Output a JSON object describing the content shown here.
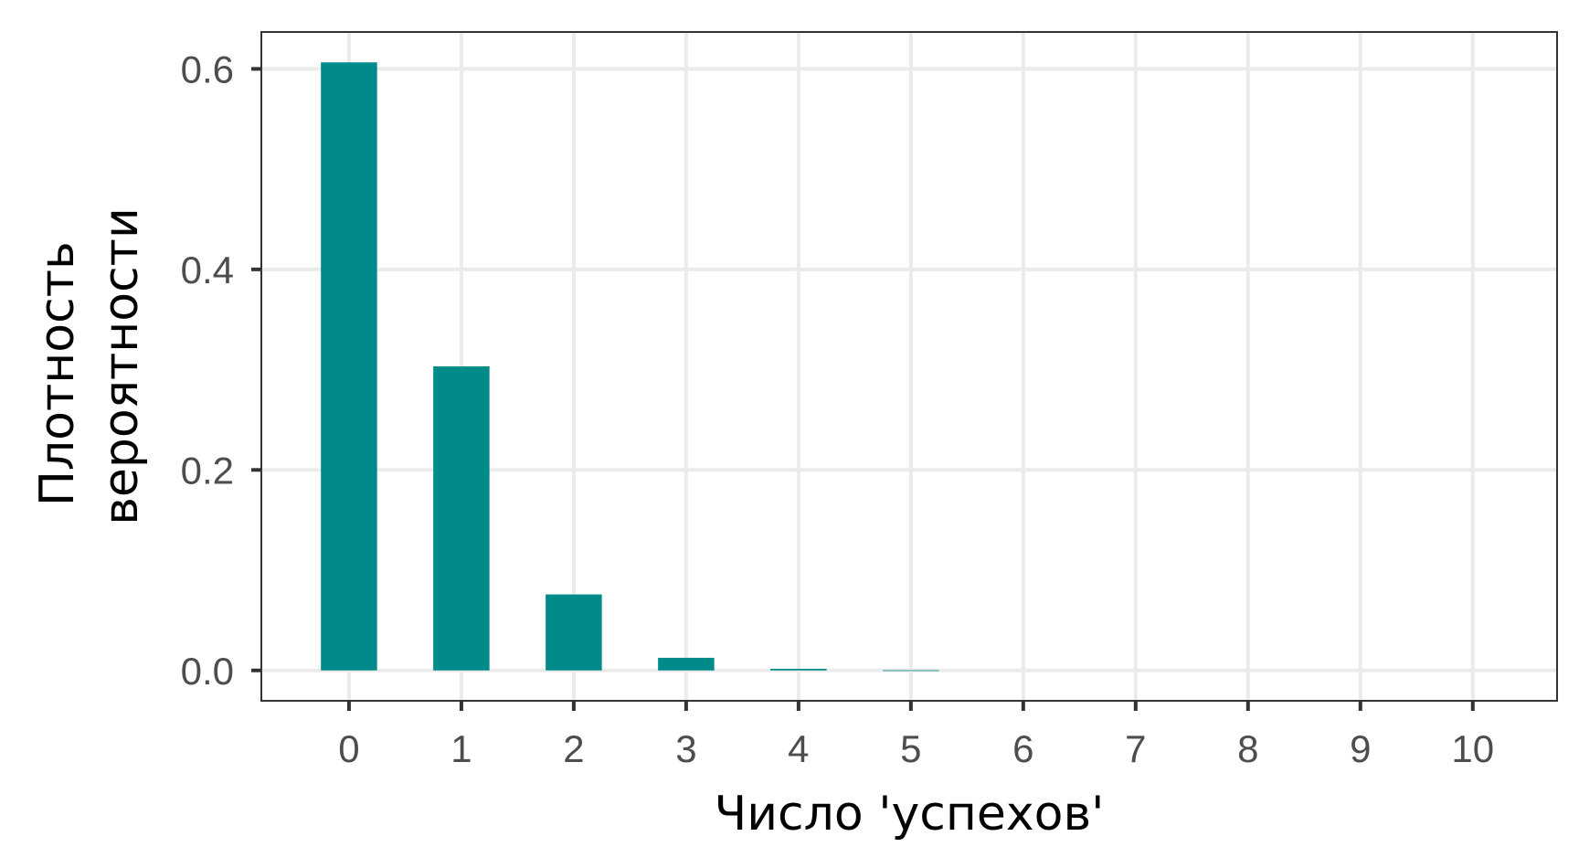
{
  "chart_data": {
    "type": "bar",
    "x": [
      0,
      1,
      2,
      3,
      4,
      5,
      6,
      7,
      8,
      9,
      10
    ],
    "tick_labels": [
      "0",
      "1",
      "2",
      "3",
      "4",
      "5",
      "6",
      "7",
      "8",
      "9",
      "10"
    ],
    "values": [
      0.6065,
      0.3033,
      0.0758,
      0.0126,
      0.0016,
      0.0002,
      0.0,
      0.0,
      0.0,
      0.0,
      0.0
    ],
    "xlabel": "Число 'успехов'",
    "ylabel_lines": [
      "Плотность",
      "вероятности"
    ],
    "yticks": [
      0.0,
      0.2,
      0.4,
      0.6
    ],
    "ytick_labels": [
      "0.0",
      "0.2",
      "0.4",
      "0.6"
    ],
    "xlim": [
      -0.78,
      10.75
    ],
    "ylim": [
      -0.0303,
      0.6368
    ],
    "grid": true,
    "legend": "none",
    "colors": {
      "bar": "#008b8b",
      "grid": "#ebebeb",
      "panel_border": "#333333",
      "tick": "#333333",
      "tick_text": "#4d4d4d",
      "title_text": "#000000"
    }
  }
}
